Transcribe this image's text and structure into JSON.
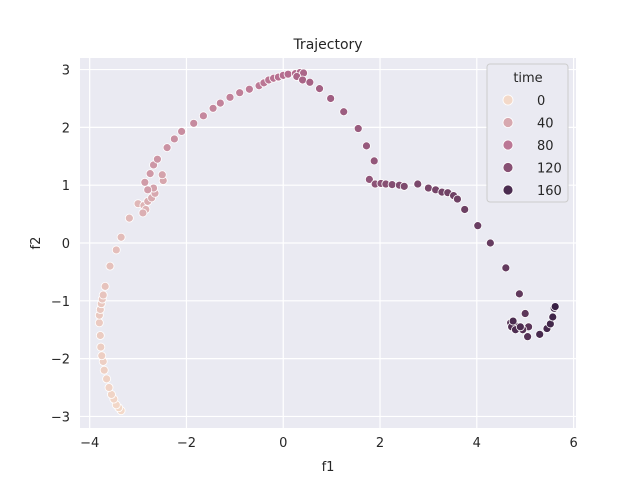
{
  "chart_data": {
    "type": "scatter",
    "title": "Trajectory",
    "xlabel": "f1",
    "ylabel": "f2",
    "xlim": [
      -4.2,
      6.05
    ],
    "ylim": [
      -3.2,
      3.2
    ],
    "xticks": [
      -4,
      -2,
      0,
      2,
      4,
      6
    ],
    "yticks": [
      -3,
      -2,
      -1,
      0,
      1,
      2,
      3
    ],
    "grid": true,
    "legend": {
      "title": "time",
      "placement": "top-right",
      "entries": [
        {
          "label": "0",
          "value": 0
        },
        {
          "label": "40",
          "value": 40
        },
        {
          "label": "80",
          "value": 80
        },
        {
          "label": "120",
          "value": 120
        },
        {
          "label": "160",
          "value": 160
        }
      ]
    },
    "color_scale": {
      "min": 0,
      "max": 180,
      "from": "#f3d9c9",
      "mid": "#b46b8e",
      "to": "#2d1a3e"
    },
    "points": [
      {
        "x": -3.35,
        "y": -2.9,
        "t": 0
      },
      {
        "x": -3.4,
        "y": -2.85,
        "t": 1
      },
      {
        "x": -3.45,
        "y": -2.8,
        "t": 2
      },
      {
        "x": -3.5,
        "y": -2.7,
        "t": 3
      },
      {
        "x": -3.55,
        "y": -2.62,
        "t": 4
      },
      {
        "x": -3.6,
        "y": -2.5,
        "t": 5
      },
      {
        "x": -3.65,
        "y": -2.35,
        "t": 6
      },
      {
        "x": -3.7,
        "y": -2.2,
        "t": 7
      },
      {
        "x": -3.72,
        "y": -2.05,
        "t": 8
      },
      {
        "x": -3.75,
        "y": -1.95,
        "t": 9
      },
      {
        "x": -3.77,
        "y": -1.8,
        "t": 10
      },
      {
        "x": -3.78,
        "y": -1.6,
        "t": 11
      },
      {
        "x": -3.8,
        "y": -1.38,
        "t": 12
      },
      {
        "x": -3.8,
        "y": -1.25,
        "t": 13
      },
      {
        "x": -3.78,
        "y": -1.15,
        "t": 14
      },
      {
        "x": -3.76,
        "y": -1.05,
        "t": 15
      },
      {
        "x": -3.74,
        "y": -0.97,
        "t": 16
      },
      {
        "x": -3.72,
        "y": -0.9,
        "t": 17
      },
      {
        "x": -3.68,
        "y": -0.75,
        "t": 18
      },
      {
        "x": -3.58,
        "y": -0.4,
        "t": 20
      },
      {
        "x": -3.45,
        "y": -0.12,
        "t": 22
      },
      {
        "x": -3.35,
        "y": 0.1,
        "t": 24
      },
      {
        "x": -3.18,
        "y": 0.43,
        "t": 26
      },
      {
        "x": -3.0,
        "y": 0.68,
        "t": 28
      },
      {
        "x": -2.88,
        "y": 0.65,
        "t": 30
      },
      {
        "x": -2.84,
        "y": 0.58,
        "t": 32
      },
      {
        "x": -2.9,
        "y": 0.52,
        "t": 34
      },
      {
        "x": -2.8,
        "y": 0.72,
        "t": 36
      },
      {
        "x": -2.72,
        "y": 0.78,
        "t": 38
      },
      {
        "x": -2.65,
        "y": 0.86,
        "t": 40
      },
      {
        "x": -2.48,
        "y": 1.08,
        "t": 42
      },
      {
        "x": -2.5,
        "y": 1.18,
        "t": 44
      },
      {
        "x": -2.68,
        "y": 0.95,
        "t": 46
      },
      {
        "x": -2.8,
        "y": 0.92,
        "t": 48
      },
      {
        "x": -2.86,
        "y": 1.05,
        "t": 50
      },
      {
        "x": -2.75,
        "y": 1.2,
        "t": 52
      },
      {
        "x": -2.68,
        "y": 1.35,
        "t": 54
      },
      {
        "x": -2.6,
        "y": 1.45,
        "t": 56
      },
      {
        "x": -2.4,
        "y": 1.65,
        "t": 58
      },
      {
        "x": -2.25,
        "y": 1.8,
        "t": 60
      },
      {
        "x": -2.1,
        "y": 1.93,
        "t": 62
      },
      {
        "x": -1.85,
        "y": 2.07,
        "t": 64
      },
      {
        "x": -1.65,
        "y": 2.2,
        "t": 66
      },
      {
        "x": -1.45,
        "y": 2.33,
        "t": 68
      },
      {
        "x": -1.3,
        "y": 2.42,
        "t": 70
      },
      {
        "x": -1.1,
        "y": 2.52,
        "t": 72
      },
      {
        "x": -0.9,
        "y": 2.6,
        "t": 74
      },
      {
        "x": -0.7,
        "y": 2.66,
        "t": 76
      },
      {
        "x": -0.5,
        "y": 2.72,
        "t": 78
      },
      {
        "x": -0.4,
        "y": 2.77,
        "t": 80
      },
      {
        "x": -0.3,
        "y": 2.82,
        "t": 82
      },
      {
        "x": -0.2,
        "y": 2.85,
        "t": 84
      },
      {
        "x": -0.1,
        "y": 2.87,
        "t": 86
      },
      {
        "x": 0.0,
        "y": 2.9,
        "t": 88
      },
      {
        "x": 0.1,
        "y": 2.92,
        "t": 90
      },
      {
        "x": 0.25,
        "y": 2.93,
        "t": 92
      },
      {
        "x": 0.35,
        "y": 2.95,
        "t": 94
      },
      {
        "x": 0.42,
        "y": 2.94,
        "t": 96
      },
      {
        "x": 0.28,
        "y": 2.88,
        "t": 97
      },
      {
        "x": 0.4,
        "y": 2.82,
        "t": 98
      },
      {
        "x": 0.55,
        "y": 2.78,
        "t": 100
      },
      {
        "x": 0.75,
        "y": 2.67,
        "t": 102
      },
      {
        "x": 0.98,
        "y": 2.5,
        "t": 104
      },
      {
        "x": 1.25,
        "y": 2.27,
        "t": 106
      },
      {
        "x": 1.55,
        "y": 1.98,
        "t": 108
      },
      {
        "x": 1.72,
        "y": 1.68,
        "t": 110
      },
      {
        "x": 1.88,
        "y": 1.42,
        "t": 112
      },
      {
        "x": 1.78,
        "y": 1.1,
        "t": 114
      },
      {
        "x": 1.9,
        "y": 1.02,
        "t": 116
      },
      {
        "x": 2.02,
        "y": 1.03,
        "t": 118
      },
      {
        "x": 2.12,
        "y": 1.02,
        "t": 120
      },
      {
        "x": 2.25,
        "y": 1.01,
        "t": 122
      },
      {
        "x": 2.4,
        "y": 1.0,
        "t": 124
      },
      {
        "x": 2.5,
        "y": 0.98,
        "t": 126
      },
      {
        "x": 2.78,
        "y": 1.02,
        "t": 128
      },
      {
        "x": 3.0,
        "y": 0.95,
        "t": 130
      },
      {
        "x": 3.15,
        "y": 0.92,
        "t": 132
      },
      {
        "x": 3.28,
        "y": 0.88,
        "t": 134
      },
      {
        "x": 3.4,
        "y": 0.87,
        "t": 135
      },
      {
        "x": 3.52,
        "y": 0.82,
        "t": 136
      },
      {
        "x": 3.6,
        "y": 0.76,
        "t": 137
      },
      {
        "x": 3.75,
        "y": 0.58,
        "t": 138
      },
      {
        "x": 4.02,
        "y": 0.3,
        "t": 140
      },
      {
        "x": 4.28,
        "y": 0.0,
        "t": 142
      },
      {
        "x": 4.6,
        "y": -0.43,
        "t": 144
      },
      {
        "x": 4.88,
        "y": -0.88,
        "t": 146
      },
      {
        "x": 5.0,
        "y": -1.22,
        "t": 148
      },
      {
        "x": 5.07,
        "y": -1.45,
        "t": 150
      },
      {
        "x": 5.05,
        "y": -1.62,
        "t": 152
      },
      {
        "x": 4.95,
        "y": -1.5,
        "t": 153
      },
      {
        "x": 4.85,
        "y": -1.45,
        "t": 154
      },
      {
        "x": 4.78,
        "y": -1.42,
        "t": 155
      },
      {
        "x": 4.7,
        "y": -1.38,
        "t": 156
      },
      {
        "x": 4.72,
        "y": -1.45,
        "t": 157
      },
      {
        "x": 4.8,
        "y": -1.5,
        "t": 158
      },
      {
        "x": 4.9,
        "y": -1.45,
        "t": 159
      },
      {
        "x": 4.75,
        "y": -1.35,
        "t": 160
      },
      {
        "x": 5.3,
        "y": -1.58,
        "t": 162
      },
      {
        "x": 5.45,
        "y": -1.48,
        "t": 164
      },
      {
        "x": 5.52,
        "y": -1.4,
        "t": 166
      },
      {
        "x": 5.57,
        "y": -1.28,
        "t": 168
      },
      {
        "x": 5.6,
        "y": -1.13,
        "t": 170
      },
      {
        "x": 5.62,
        "y": -1.1,
        "t": 172
      }
    ]
  }
}
